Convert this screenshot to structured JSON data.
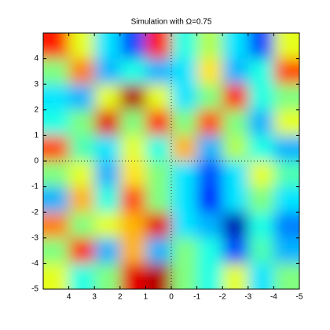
{
  "chart_data": {
    "type": "heatmap",
    "title": "Simulation with Ω=0.75",
    "xlim": [
      5,
      -5
    ],
    "ylim": [
      -5,
      5
    ],
    "xticks": [
      4,
      3,
      2,
      1,
      0,
      -1,
      -2,
      -3,
      -4,
      -5
    ],
    "yticks": [
      -5,
      -4,
      -3,
      -2,
      -1,
      0,
      1,
      2,
      3,
      4
    ],
    "colormap": "jet",
    "clim": [
      0,
      1
    ],
    "z": [
      [
        0.85,
        0.6,
        0.35,
        0.2,
        0.85,
        0.4,
        0.55,
        0.35,
        0.2,
        0.6
      ],
      [
        0.5,
        0.75,
        0.3,
        0.4,
        0.3,
        0.35,
        0.65,
        0.3,
        0.4,
        0.8
      ],
      [
        0.35,
        0.3,
        0.6,
        0.95,
        0.6,
        0.35,
        0.5,
        0.85,
        0.4,
        0.5
      ],
      [
        0.4,
        0.5,
        0.9,
        0.5,
        0.85,
        0.5,
        0.8,
        0.5,
        0.3,
        0.6
      ],
      [
        0.8,
        0.45,
        0.35,
        0.6,
        0.4,
        0.7,
        0.3,
        0.55,
        0.4,
        0.3
      ],
      [
        0.5,
        0.6,
        0.3,
        0.65,
        0.5,
        0.35,
        0.2,
        0.35,
        0.6,
        0.45
      ],
      [
        0.3,
        0.7,
        0.4,
        0.8,
        0.5,
        0.35,
        0.15,
        0.35,
        0.5,
        0.35
      ],
      [
        0.75,
        0.5,
        0.6,
        0.7,
        0.9,
        0.35,
        0.3,
        0.05,
        0.4,
        0.25
      ],
      [
        0.5,
        0.85,
        0.3,
        0.7,
        0.3,
        0.5,
        0.4,
        0.2,
        0.45,
        0.3
      ],
      [
        0.6,
        0.4,
        0.5,
        0.9,
        0.95,
        0.5,
        0.4,
        0.6,
        0.35,
        0.5
      ]
    ]
  }
}
